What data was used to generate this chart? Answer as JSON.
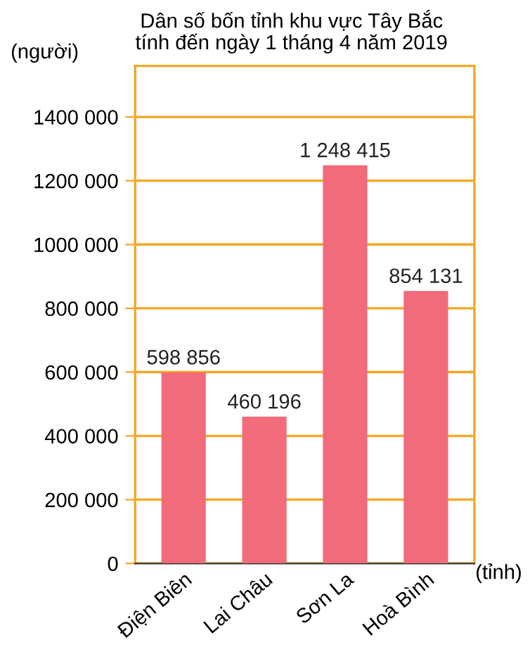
{
  "chart_data": {
    "type": "bar",
    "title": "Dân số bốn tỉnh khu vực Tây Bắc\ntính đến ngày 1 tháng 4 năm 2019",
    "ylabel": "(người)",
    "xlabel": "(tỉnh)",
    "categories": [
      "Điện Biên",
      "Lai Châu",
      "Sơn La",
      "Hoà Bình"
    ],
    "values": [
      598856,
      460196,
      1248415,
      854131
    ],
    "value_labels": [
      "598 856",
      "460 196",
      "1 248 415",
      "854 131"
    ],
    "color": "#f26b7a",
    "ylim": [
      0,
      1560000
    ],
    "yticks": [
      {
        "value": 0,
        "label": "0"
      },
      {
        "value": 200000,
        "label": "200 000"
      },
      {
        "value": 400000,
        "label": "400 000"
      },
      {
        "value": 600000,
        "label": "600 000"
      },
      {
        "value": 800000,
        "label": "800 000"
      },
      {
        "value": 1000000,
        "label": "1000 000"
      },
      {
        "value": 1200000,
        "label": "1200 000"
      },
      {
        "value": 1400000,
        "label": "1400 000"
      }
    ],
    "grid": "y"
  }
}
